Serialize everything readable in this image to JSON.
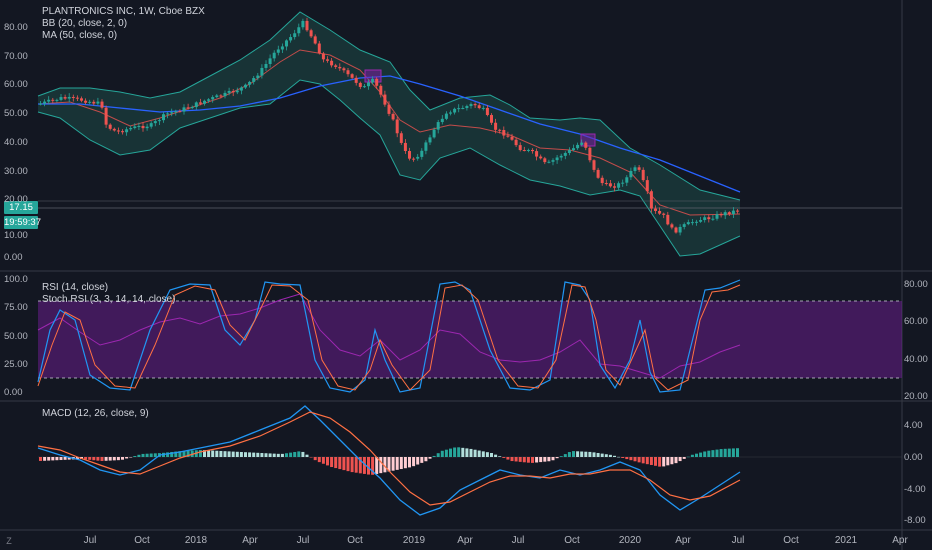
{
  "header": {
    "symbol_line": "PLANTRONICS INC, 1W, Cboe BZX",
    "bb_line": "BB (20, close, 2, 0)",
    "ma_line": "MA (50, close, 0)"
  },
  "price_tags": {
    "price": "17.15",
    "countdown": "19:59:37"
  },
  "price_axis": [
    "80.00",
    "70.00",
    "60.00",
    "50.00",
    "40.00",
    "30.00",
    "20.00",
    "10.00",
    "0.00"
  ],
  "rsi_panel": {
    "rsi_label": "RSI (14, close)",
    "stoch_label": "Stoch RSI (3, 3, 14, 14, close)",
    "left_axis": [
      "100.0",
      "75.00",
      "50.00",
      "25.00",
      "0.00"
    ],
    "right_axis": [
      "80.00",
      "60.00",
      "40.00",
      "20.00"
    ]
  },
  "macd_panel": {
    "label": "MACD (12, 26, close, 9)",
    "right_axis": [
      "4.00",
      "0.00",
      "-4.00",
      "-8.00"
    ]
  },
  "time_axis": [
    "Jul",
    "Oct",
    "2018",
    "Apr",
    "Jul",
    "Oct",
    "2019",
    "Apr",
    "Jul",
    "Oct",
    "2020",
    "Apr",
    "Jul",
    "Oct",
    "2021",
    "Apr"
  ],
  "corner": {
    "label": "Z"
  },
  "colors": {
    "background": "#131722",
    "up_candle": "#26a69a",
    "down_candle": "#ef5350",
    "bb_fill": "#1e4a47",
    "ma_line": "#2962ff",
    "rsi_band": "#7b1fa2"
  }
}
